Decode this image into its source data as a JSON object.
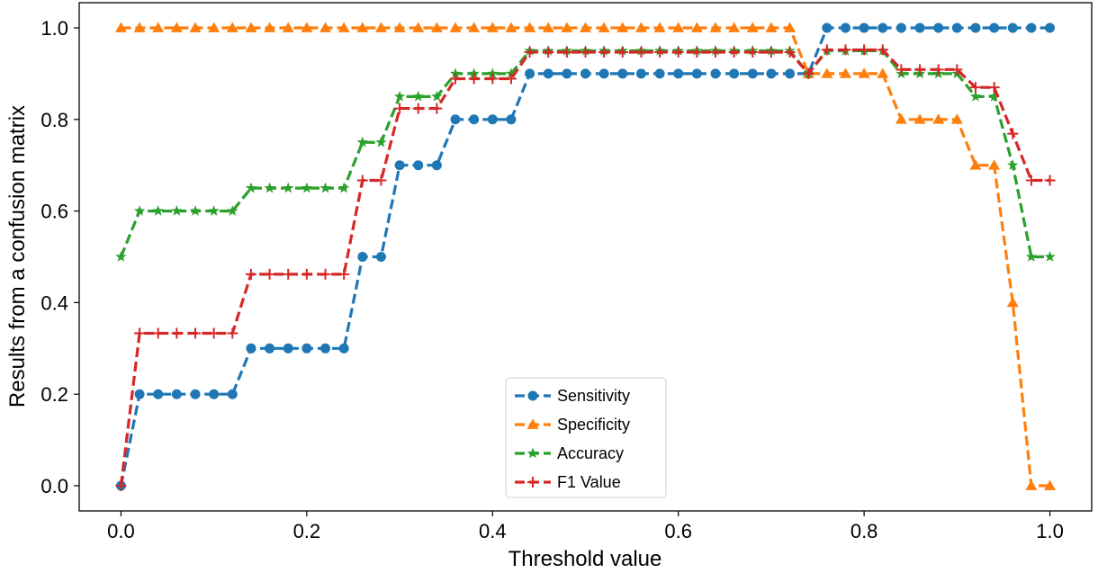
{
  "chart_data": {
    "type": "line",
    "xlabel": "Threshold value",
    "ylabel": "Results from a confusion matrix",
    "xlim": [
      -0.045,
      1.045
    ],
    "ylim": [
      -0.055,
      1.055
    ],
    "xticks": [
      0.0,
      0.2,
      0.4,
      0.6,
      0.8,
      1.0
    ],
    "xtick_labels": [
      "0.0",
      "0.2",
      "0.4",
      "0.6",
      "0.8",
      "1.0"
    ],
    "yticks": [
      0.0,
      0.2,
      0.4,
      0.6,
      0.8,
      1.0
    ],
    "ytick_labels": [
      "0.0",
      "0.2",
      "0.4",
      "0.6",
      "0.8",
      "1.0"
    ],
    "grid": false,
    "legend_position": "lower-center",
    "x": [
      0.0,
      0.02,
      0.04,
      0.06,
      0.08,
      0.1,
      0.12,
      0.14,
      0.16,
      0.18,
      0.2,
      0.22,
      0.24,
      0.26,
      0.28,
      0.3,
      0.32,
      0.34,
      0.36,
      0.38,
      0.4,
      0.42,
      0.44,
      0.46,
      0.48,
      0.5,
      0.52,
      0.54,
      0.56,
      0.58,
      0.6,
      0.62,
      0.64,
      0.66,
      0.68,
      0.7,
      0.72,
      0.74,
      0.76,
      0.78,
      0.8,
      0.82,
      0.84,
      0.86,
      0.88,
      0.9,
      0.92,
      0.94,
      0.96,
      0.98,
      1.0
    ],
    "series": [
      {
        "name": "Sensitivity",
        "color": "#1f77b4",
        "marker": "circle",
        "values": [
          0.0,
          0.2,
          0.2,
          0.2,
          0.2,
          0.2,
          0.2,
          0.3,
          0.3,
          0.3,
          0.3,
          0.3,
          0.3,
          0.5,
          0.5,
          0.7,
          0.7,
          0.7,
          0.8,
          0.8,
          0.8,
          0.8,
          0.9,
          0.9,
          0.9,
          0.9,
          0.9,
          0.9,
          0.9,
          0.9,
          0.9,
          0.9,
          0.9,
          0.9,
          0.9,
          0.9,
          0.9,
          0.9,
          1.0,
          1.0,
          1.0,
          1.0,
          1.0,
          1.0,
          1.0,
          1.0,
          1.0,
          1.0,
          1.0,
          1.0,
          1.0
        ]
      },
      {
        "name": "Specificity",
        "color": "#ff7f0e",
        "marker": "triangle",
        "values": [
          1.0,
          1.0,
          1.0,
          1.0,
          1.0,
          1.0,
          1.0,
          1.0,
          1.0,
          1.0,
          1.0,
          1.0,
          1.0,
          1.0,
          1.0,
          1.0,
          1.0,
          1.0,
          1.0,
          1.0,
          1.0,
          1.0,
          1.0,
          1.0,
          1.0,
          1.0,
          1.0,
          1.0,
          1.0,
          1.0,
          1.0,
          1.0,
          1.0,
          1.0,
          1.0,
          1.0,
          1.0,
          0.9,
          0.9,
          0.9,
          0.9,
          0.9,
          0.8,
          0.8,
          0.8,
          0.8,
          0.7,
          0.7,
          0.4,
          0.0,
          0.0
        ]
      },
      {
        "name": "Accuracy",
        "color": "#2ca02c",
        "marker": "star",
        "values": [
          0.5,
          0.6,
          0.6,
          0.6,
          0.6,
          0.6,
          0.6,
          0.65,
          0.65,
          0.65,
          0.65,
          0.65,
          0.65,
          0.75,
          0.75,
          0.85,
          0.85,
          0.85,
          0.9,
          0.9,
          0.9,
          0.9,
          0.95,
          0.95,
          0.95,
          0.95,
          0.95,
          0.95,
          0.95,
          0.95,
          0.95,
          0.95,
          0.95,
          0.95,
          0.95,
          0.95,
          0.95,
          0.9,
          0.95,
          0.95,
          0.95,
          0.95,
          0.9,
          0.9,
          0.9,
          0.9,
          0.85,
          0.85,
          0.7,
          0.5,
          0.5
        ]
      },
      {
        "name": "F1 Value",
        "color": "#d62728",
        "marker": "plus",
        "values": [
          0.0,
          0.333,
          0.333,
          0.333,
          0.333,
          0.333,
          0.333,
          0.462,
          0.462,
          0.462,
          0.462,
          0.462,
          0.462,
          0.667,
          0.667,
          0.824,
          0.824,
          0.824,
          0.889,
          0.889,
          0.889,
          0.889,
          0.947,
          0.947,
          0.947,
          0.947,
          0.947,
          0.947,
          0.947,
          0.947,
          0.947,
          0.947,
          0.947,
          0.947,
          0.947,
          0.947,
          0.947,
          0.9,
          0.952,
          0.952,
          0.952,
          0.952,
          0.909,
          0.909,
          0.909,
          0.909,
          0.87,
          0.87,
          0.769,
          0.667,
          0.667
        ]
      }
    ]
  }
}
